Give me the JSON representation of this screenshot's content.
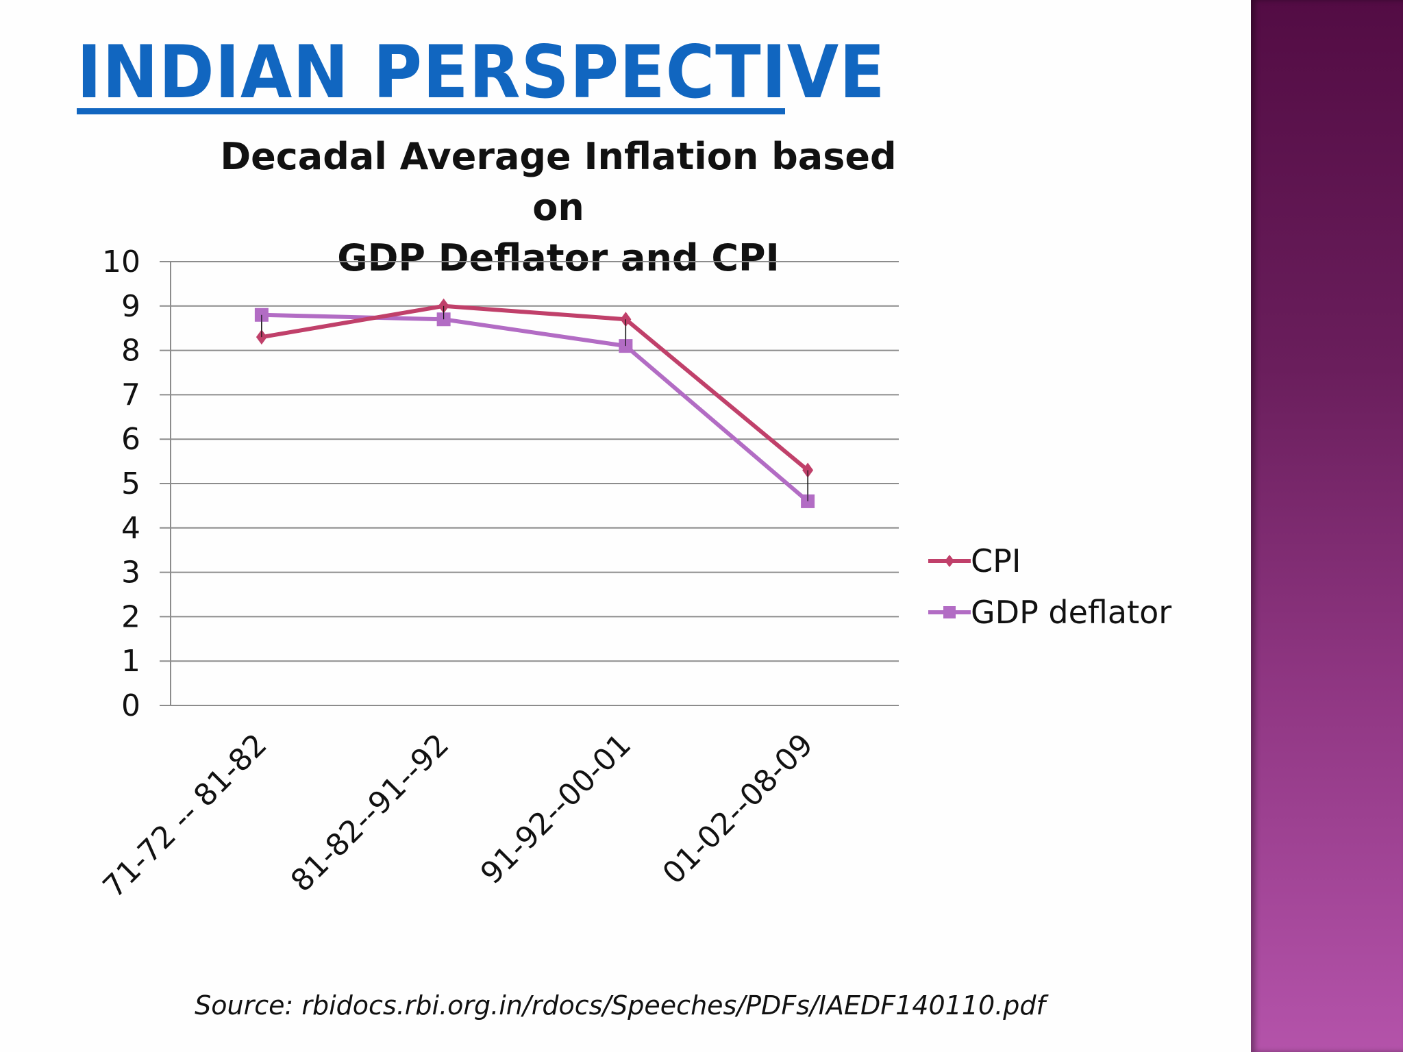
{
  "slide": {
    "title": "INDIAN PERSPECTIVE",
    "source": "Source: rbidocs.rbi.org.in/rdocs/Speeches/PDFs/IAEDF140110.pdf",
    "title_color": "#1166c0"
  },
  "chart_data": {
    "type": "line",
    "title_line1": "Decadal Average Inflation based on",
    "title_line2": "GDP Deflator and CPI",
    "categories": [
      "71-72 -- 81-82",
      "81-82--91--92",
      "91-92--00-01",
      "01-02--08-09"
    ],
    "ylim": [
      0,
      10
    ],
    "yticks": [
      "0",
      "1",
      "2",
      "3",
      "4",
      "5",
      "6",
      "7",
      "8",
      "9",
      "10"
    ],
    "grid": true,
    "legend_position": "right",
    "high_low_lines": true,
    "series": [
      {
        "name": "CPI",
        "values": [
          8.3,
          9.0,
          8.7,
          5.3
        ],
        "color": "#c0406a",
        "marker": "diamond"
      },
      {
        "name": "GDP deflator",
        "values": [
          8.8,
          8.7,
          8.1,
          4.6
        ],
        "color": "#b26cc4",
        "marker": "square"
      }
    ]
  }
}
